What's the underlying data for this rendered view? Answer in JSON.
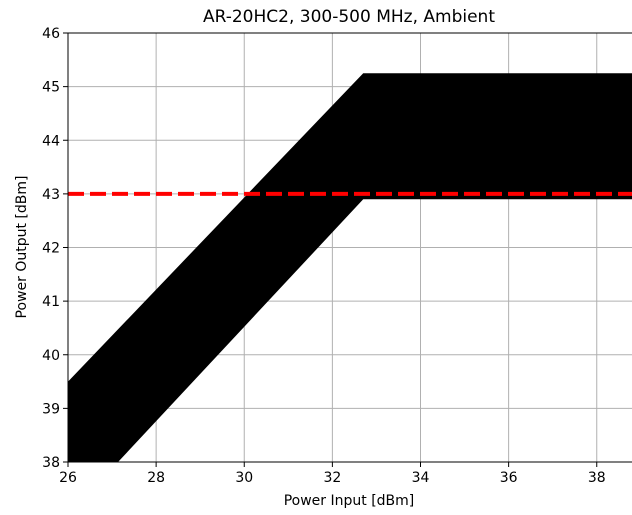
{
  "chart_data": {
    "type": "area",
    "title": "AR-20HC2, 300-500 MHz, Ambient",
    "xlabel": "Power Input [dBm]",
    "ylabel": "Power Output [dBm]",
    "xlim": [
      26,
      38.8
    ],
    "ylim": [
      38,
      46
    ],
    "xticks": [
      26,
      28,
      30,
      32,
      34,
      36,
      38
    ],
    "yticks": [
      38,
      39,
      40,
      41,
      42,
      43,
      44,
      45,
      46
    ],
    "grid": true,
    "series": [
      {
        "kind": "band",
        "color": "#000000",
        "x": [
          26,
          32.7,
          38.8
        ],
        "upper": [
          39.5,
          45.25,
          45.25
        ],
        "lower": [
          37.0,
          42.9,
          42.9
        ]
      },
      {
        "kind": "hline",
        "color": "#ff0000",
        "style": "dashed",
        "y": 43.0
      }
    ]
  }
}
